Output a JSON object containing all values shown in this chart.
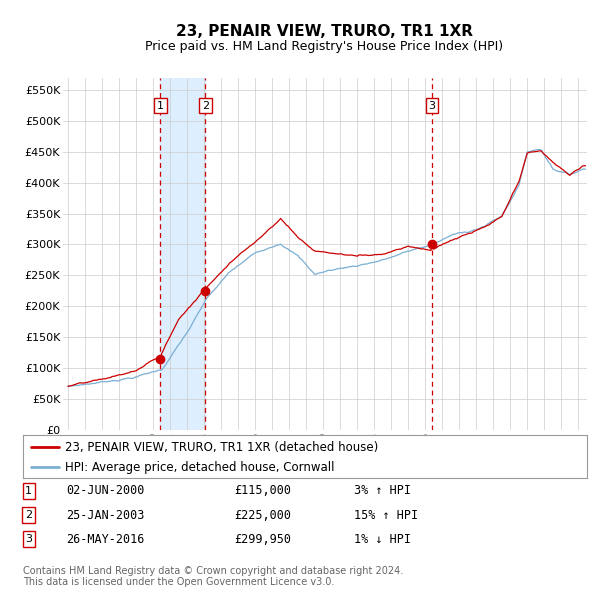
{
  "title": "23, PENAIR VIEW, TRURO, TR1 1XR",
  "subtitle": "Price paid vs. HM Land Registry's House Price Index (HPI)",
  "ylim": [
    0,
    570000
  ],
  "xlim_start": 1994.7,
  "xlim_end": 2025.5,
  "yticks": [
    0,
    50000,
    100000,
    150000,
    200000,
    250000,
    300000,
    350000,
    400000,
    450000,
    500000,
    550000
  ],
  "ytick_labels": [
    "£0",
    "£50K",
    "£100K",
    "£150K",
    "£200K",
    "£250K",
    "£300K",
    "£350K",
    "£400K",
    "£450K",
    "£500K",
    "£550K"
  ],
  "sales": [
    {
      "date_decimal": 2000.42,
      "price": 115000,
      "label": "1"
    },
    {
      "date_decimal": 2003.07,
      "price": 225000,
      "label": "2"
    },
    {
      "date_decimal": 2016.4,
      "price": 299950,
      "label": "3"
    }
  ],
  "sale_annotations": [
    {
      "label": "1",
      "date": "02-JUN-2000",
      "price": "£115,000",
      "hpi_pct": "3%",
      "hpi_dir": "↑"
    },
    {
      "label": "2",
      "date": "25-JAN-2003",
      "price": "£225,000",
      "hpi_pct": "15%",
      "hpi_dir": "↑"
    },
    {
      "label": "3",
      "date": "26-MAY-2016",
      "price": "£299,950",
      "hpi_pct": "1%",
      "hpi_dir": "↓"
    }
  ],
  "hpi_line_color": "#7bafd4",
  "price_line_color": "#cc0000",
  "sale_dot_color": "#cc0000",
  "vline_color": "#cc0000",
  "shade_color": "#ddeeff",
  "grid_color": "#cccccc",
  "background_color": "#ffffff",
  "legend_line1": "23, PENAIR VIEW, TRURO, TR1 1XR (detached house)",
  "legend_line2": "HPI: Average price, detached house, Cornwall",
  "footer1": "Contains HM Land Registry data © Crown copyright and database right 2024.",
  "footer2": "This data is licensed under the Open Government Licence v3.0.",
  "title_fontsize": 11,
  "subtitle_fontsize": 9,
  "tick_fontsize": 8,
  "legend_fontsize": 8.5,
  "annotation_fontsize": 8.5,
  "footer_fontsize": 7
}
